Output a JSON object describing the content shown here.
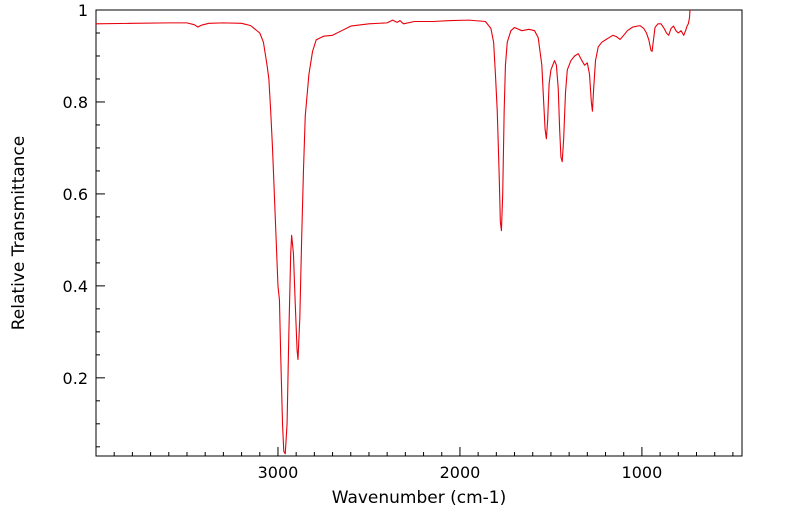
{
  "chart_data": {
    "type": "line",
    "xlabel": "Wavenumber (cm-1)",
    "ylabel": "Relative Transmittance",
    "xlim": [
      4000,
      450
    ],
    "ylim": [
      0.03,
      1.0
    ],
    "x_reversed": true,
    "grid": false,
    "x_ticks": [
      3000,
      2000,
      1000
    ],
    "y_ticks": [
      0.2,
      0.4,
      0.6,
      0.8,
      1
    ],
    "x_tick_labels": [
      "3000",
      "2000",
      "1000"
    ],
    "y_tick_labels": [
      "0.2",
      "0.4",
      "0.6",
      "0.8",
      "1"
    ],
    "series": [
      {
        "color": "#e8000b",
        "points": [
          [
            4000,
            0.97
          ],
          [
            3800,
            0.971
          ],
          [
            3600,
            0.972
          ],
          [
            3500,
            0.972
          ],
          [
            3460,
            0.968
          ],
          [
            3440,
            0.963
          ],
          [
            3420,
            0.967
          ],
          [
            3380,
            0.971
          ],
          [
            3300,
            0.972
          ],
          [
            3200,
            0.971
          ],
          [
            3150,
            0.966
          ],
          [
            3100,
            0.95
          ],
          [
            3080,
            0.93
          ],
          [
            3060,
            0.88
          ],
          [
            3050,
            0.85
          ],
          [
            3040,
            0.78
          ],
          [
            3030,
            0.7
          ],
          [
            3020,
            0.6
          ],
          [
            3010,
            0.5
          ],
          [
            3000,
            0.4
          ],
          [
            2992,
            0.37
          ],
          [
            2985,
            0.25
          ],
          [
            2975,
            0.1
          ],
          [
            2968,
            0.04
          ],
          [
            2960,
            0.035
          ],
          [
            2950,
            0.1
          ],
          [
            2940,
            0.3
          ],
          [
            2930,
            0.47
          ],
          [
            2925,
            0.51
          ],
          [
            2915,
            0.47
          ],
          [
            2905,
            0.36
          ],
          [
            2895,
            0.26
          ],
          [
            2890,
            0.24
          ],
          [
            2880,
            0.33
          ],
          [
            2870,
            0.5
          ],
          [
            2860,
            0.65
          ],
          [
            2850,
            0.77
          ],
          [
            2830,
            0.86
          ],
          [
            2810,
            0.91
          ],
          [
            2790,
            0.935
          ],
          [
            2750,
            0.943
          ],
          [
            2700,
            0.945
          ],
          [
            2650,
            0.955
          ],
          [
            2600,
            0.965
          ],
          [
            2500,
            0.97
          ],
          [
            2400,
            0.972
          ],
          [
            2370,
            0.978
          ],
          [
            2345,
            0.973
          ],
          [
            2330,
            0.977
          ],
          [
            2310,
            0.97
          ],
          [
            2250,
            0.975
          ],
          [
            2150,
            0.975
          ],
          [
            2050,
            0.977
          ],
          [
            1950,
            0.978
          ],
          [
            1860,
            0.975
          ],
          [
            1830,
            0.96
          ],
          [
            1815,
            0.93
          ],
          [
            1805,
            0.86
          ],
          [
            1795,
            0.78
          ],
          [
            1785,
            0.65
          ],
          [
            1778,
            0.54
          ],
          [
            1772,
            0.52
          ],
          [
            1765,
            0.6
          ],
          [
            1757,
            0.78
          ],
          [
            1750,
            0.88
          ],
          [
            1740,
            0.93
          ],
          [
            1720,
            0.955
          ],
          [
            1700,
            0.962
          ],
          [
            1660,
            0.955
          ],
          [
            1620,
            0.958
          ],
          [
            1590,
            0.955
          ],
          [
            1570,
            0.94
          ],
          [
            1550,
            0.88
          ],
          [
            1540,
            0.8
          ],
          [
            1532,
            0.74
          ],
          [
            1525,
            0.72
          ],
          [
            1518,
            0.76
          ],
          [
            1510,
            0.84
          ],
          [
            1500,
            0.87
          ],
          [
            1490,
            0.88
          ],
          [
            1480,
            0.89
          ],
          [
            1470,
            0.88
          ],
          [
            1460,
            0.83
          ],
          [
            1452,
            0.74
          ],
          [
            1445,
            0.68
          ],
          [
            1438,
            0.67
          ],
          [
            1430,
            0.72
          ],
          [
            1420,
            0.82
          ],
          [
            1410,
            0.87
          ],
          [
            1390,
            0.89
          ],
          [
            1370,
            0.9
          ],
          [
            1350,
            0.905
          ],
          [
            1330,
            0.89
          ],
          [
            1315,
            0.88
          ],
          [
            1300,
            0.885
          ],
          [
            1288,
            0.86
          ],
          [
            1278,
            0.8
          ],
          [
            1272,
            0.78
          ],
          [
            1265,
            0.83
          ],
          [
            1255,
            0.89
          ],
          [
            1240,
            0.92
          ],
          [
            1220,
            0.93
          ],
          [
            1200,
            0.935
          ],
          [
            1180,
            0.94
          ],
          [
            1160,
            0.945
          ],
          [
            1140,
            0.942
          ],
          [
            1120,
            0.936
          ],
          [
            1100,
            0.945
          ],
          [
            1080,
            0.955
          ],
          [
            1050,
            0.963
          ],
          [
            1010,
            0.966
          ],
          [
            990,
            0.96
          ],
          [
            975,
            0.95
          ],
          [
            962,
            0.935
          ],
          [
            950,
            0.912
          ],
          [
            944,
            0.91
          ],
          [
            938,
            0.93
          ],
          [
            928,
            0.962
          ],
          [
            912,
            0.97
          ],
          [
            895,
            0.97
          ],
          [
            878,
            0.96
          ],
          [
            865,
            0.95
          ],
          [
            853,
            0.945
          ],
          [
            840,
            0.96
          ],
          [
            826,
            0.965
          ],
          [
            813,
            0.955
          ],
          [
            800,
            0.95
          ],
          [
            785,
            0.955
          ],
          [
            770,
            0.945
          ],
          [
            760,
            0.955
          ],
          [
            752,
            0.965
          ],
          [
            745,
            0.97
          ],
          [
            740,
            0.98
          ],
          [
            738,
            0.985
          ],
          [
            736,
            1.0
          ]
        ]
      }
    ]
  }
}
